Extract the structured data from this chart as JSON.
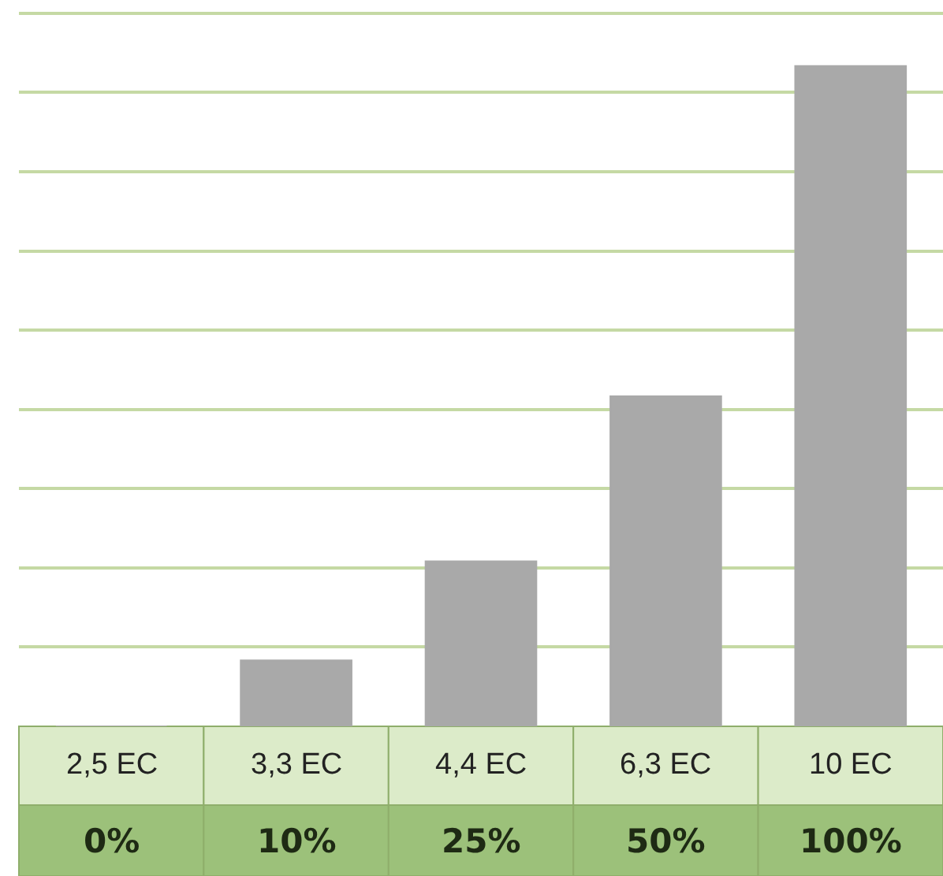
{
  "chart_data": {
    "type": "bar",
    "grid": "y",
    "categories": [
      "2,5 EC",
      "3,3 EC",
      "4,4 EC",
      "6,3 EC",
      "10 EC"
    ],
    "values": [
      0,
      10,
      25,
      50,
      100
    ],
    "value_labels": [
      "0%",
      "10%",
      "25%",
      "50%",
      "100%"
    ],
    "color": "#a9a9a9",
    "ylim": [
      0,
      110
    ],
    "yticks": [
      {
        "value": 12,
        "label": null
      },
      {
        "value": 24,
        "label": null
      },
      {
        "value": 36,
        "label": null
      },
      {
        "value": 48,
        "label": null
      },
      {
        "value": 60,
        "label": null
      },
      {
        "value": 72,
        "label": null
      },
      {
        "value": 84,
        "label": null
      },
      {
        "value": 96,
        "label": null
      },
      {
        "value": 108,
        "label": null
      }
    ]
  }
}
